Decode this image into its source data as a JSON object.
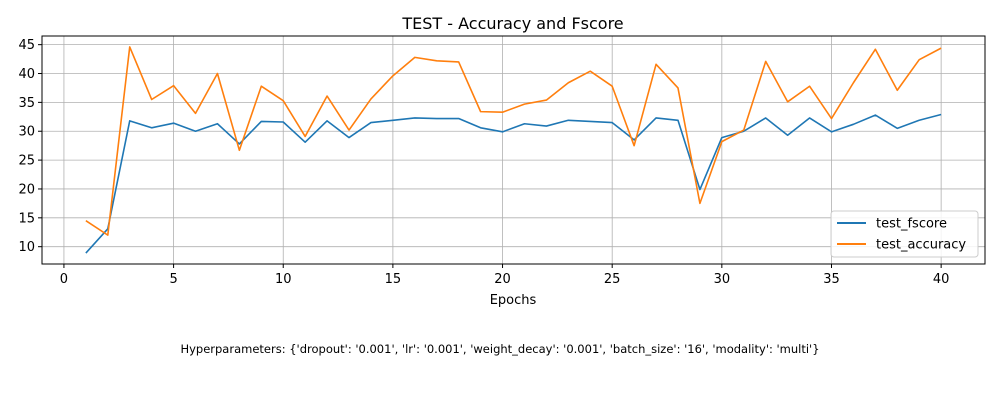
{
  "chart_data": {
    "type": "line",
    "title": "TEST - Accuracy and Fscore",
    "xlabel": "Epochs",
    "ylabel": "",
    "xlim": [
      -1,
      42
    ],
    "ylim": [
      7,
      46.5
    ],
    "xticks": [
      0,
      5,
      10,
      15,
      20,
      25,
      30,
      35,
      40
    ],
    "yticks": [
      10,
      15,
      20,
      25,
      30,
      35,
      40,
      45
    ],
    "grid": true,
    "legend_position": "lower-right",
    "x": [
      1,
      2,
      3,
      4,
      5,
      6,
      7,
      8,
      9,
      10,
      11,
      12,
      13,
      14,
      15,
      16,
      17,
      18,
      19,
      20,
      21,
      22,
      23,
      24,
      25,
      26,
      27,
      28,
      29,
      30,
      31,
      32,
      33,
      34,
      35,
      36,
      37,
      38,
      39,
      40
    ],
    "series": [
      {
        "name": "test_fscore",
        "color": "#1f77b4",
        "values": [
          8.9,
          13.1,
          31.8,
          30.6,
          31.4,
          30.0,
          31.3,
          27.8,
          31.7,
          31.6,
          28.1,
          31.8,
          28.9,
          31.5,
          31.9,
          32.3,
          32.2,
          32.2,
          30.6,
          29.9,
          31.3,
          30.9,
          31.9,
          31.7,
          31.5,
          28.5,
          32.3,
          31.9,
          19.9,
          28.9,
          30.0,
          32.3,
          29.3,
          32.3,
          29.9,
          31.2,
          32.8,
          30.5,
          31.9,
          32.9
        ]
      },
      {
        "name": "test_accuracy",
        "color": "#ff7f0e",
        "values": [
          14.5,
          12.0,
          44.6,
          35.5,
          37.9,
          33.1,
          40.0,
          26.7,
          37.8,
          35.3,
          29.1,
          36.1,
          30.2,
          35.6,
          39.6,
          42.8,
          42.2,
          42.0,
          33.4,
          33.3,
          34.7,
          35.4,
          38.4,
          40.4,
          37.8,
          27.5,
          41.6,
          37.5,
          17.5,
          28.2,
          30.2,
          42.1,
          35.1,
          37.8,
          32.2,
          38.4,
          44.2,
          37.1,
          42.4,
          44.4
        ]
      }
    ]
  },
  "caption": "Hyperparameters: {'dropout': '0.001', 'lr': '0.001', 'weight_decay': '0.001', 'batch_size': '16', 'modality': 'multi'}"
}
